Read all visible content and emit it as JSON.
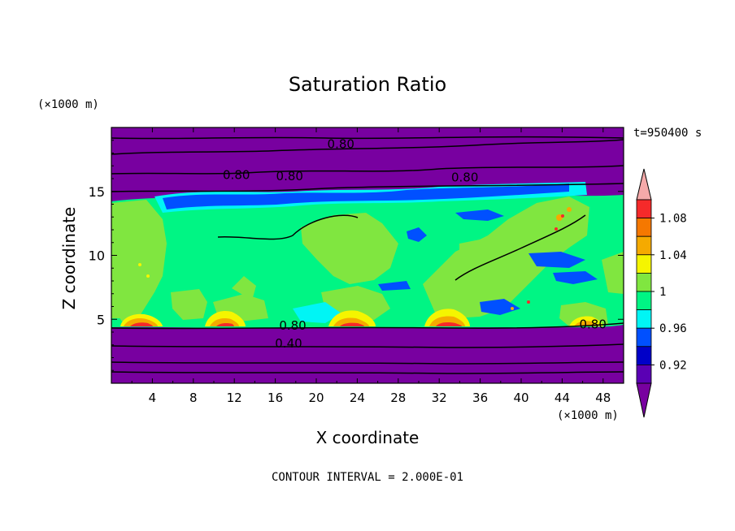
{
  "chart_data": {
    "type": "heatmap",
    "title": "Saturation Ratio",
    "xlabel": "X coordinate",
    "ylabel": "Z coordinate",
    "x_unit": "(×1000 m)",
    "y_unit": "(×1000 m)",
    "time_label": "t=950400 s",
    "footer": "CONTOUR INTERVAL = 2.000E-01",
    "xlim": [
      0,
      50
    ],
    "ylim": [
      0,
      20
    ],
    "x_ticks": [
      4,
      8,
      12,
      16,
      20,
      24,
      28,
      32,
      36,
      40,
      44,
      48
    ],
    "y_ticks": [
      5,
      10,
      15
    ],
    "contour_labels": [
      {
        "text": "0.80",
        "x": 22.4,
        "y": 18.7
      },
      {
        "text": "0.80",
        "x": 12.2,
        "y": 16.3
      },
      {
        "text": "0.80",
        "x": 17.4,
        "y": 16.2
      },
      {
        "text": "0.80",
        "x": 34.5,
        "y": 16.1
      },
      {
        "text": "0.80",
        "x": 17.7,
        "y": 4.5
      },
      {
        "text": "0.40",
        "x": 17.3,
        "y": 3.1
      },
      {
        "text": "0.80",
        "x": 47.0,
        "y": 4.6
      }
    ],
    "colorbar": {
      "levels": [
        0.92,
        0.96,
        1,
        1.04,
        1.08
      ],
      "tick_labels": [
        "1.08",
        "1.04",
        "1",
        "0.96",
        "0.92"
      ],
      "colors": [
        "#f5aaaa",
        "#f52a2a",
        "#f57800",
        "#f5aa00",
        "#f5f500",
        "#80e640",
        "#00f584",
        "#00f5f5",
        "#0050ff",
        "#0000c8",
        "#5a00b4",
        "#7800a0"
      ]
    },
    "regions": {
      "dry_color": "#7800a0",
      "moist_color": "#00f584",
      "near_one_color": "#80e640",
      "cirrus_color": "#0050ff"
    }
  }
}
